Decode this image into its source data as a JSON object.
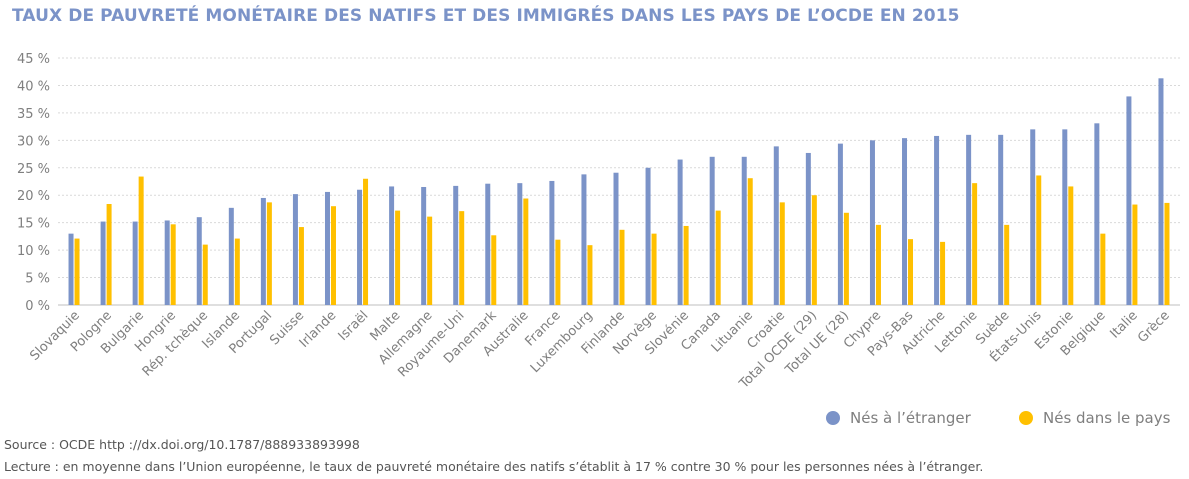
{
  "chart_data": {
    "type": "bar",
    "title": "TAUX DE PAUVRETÉ MONÉTAIRE DES NATIFS ET DES IMMIGRÉS DANS LES PAYS DE L’OCDE EN 2015",
    "categories": [
      "Slovaquie",
      "Pologne",
      "Bulgarie",
      "Hongrie",
      "Rép. tchèque",
      "Islande",
      "Portugal",
      "Suisse",
      "Irlande",
      "Israël",
      "Malte",
      "Allemagne",
      "Royaume-Uni",
      "Danemark",
      "Australie",
      "France",
      "Luxembourg",
      "Finlande",
      "Norvège",
      "Slovénie",
      "Canada",
      "Lituanie",
      "Croatie",
      "Total OCDE (29)",
      "Total UE (28)",
      "Chypre",
      "Pays-Bas",
      "Autriche",
      "Lettonie",
      "Suède",
      "États-Unis",
      "Estonie",
      "Belgique",
      "Italie",
      "Grèce"
    ],
    "series": [
      {
        "name": "Nés à l’étranger",
        "color": "#7b93c8",
        "values": [
          13.0,
          15.2,
          15.2,
          15.4,
          16.0,
          17.7,
          19.5,
          20.2,
          20.6,
          21.0,
          21.6,
          21.5,
          21.7,
          22.1,
          22.2,
          22.6,
          23.8,
          24.1,
          25.0,
          26.5,
          27.0,
          27.0,
          28.9,
          27.7,
          29.4,
          30.0,
          30.4,
          30.8,
          31.0,
          31.0,
          32.0,
          32.0,
          33.1,
          38.0,
          41.3
        ]
      },
      {
        "name": "Nés dans le pays",
        "color": "#ffc000",
        "values": [
          12.1,
          18.4,
          23.4,
          14.7,
          11.0,
          12.1,
          18.7,
          14.2,
          18.0,
          23.0,
          17.2,
          16.1,
          17.1,
          12.7,
          19.4,
          11.9,
          10.9,
          13.7,
          13.0,
          14.4,
          17.2,
          23.1,
          18.7,
          20.0,
          16.8,
          14.6,
          12.0,
          11.5,
          22.2,
          14.6,
          23.6,
          21.6,
          13.0,
          18.3,
          18.6
        ]
      }
    ],
    "yticks": [
      "0 %",
      "5 %",
      "10 %",
      "15 %",
      "20 %",
      "25 %",
      "30 %",
      "35 %",
      "40 %",
      "45 %"
    ],
    "ylim": [
      0,
      45
    ],
    "grid": true,
    "legend_position": "bottom-right"
  },
  "footer": {
    "source": "Source : OCDE http ://dx.doi.org/10.1787/888933893998",
    "lecture": "Lecture : en moyenne dans l’Union européenne, le taux de pauvreté monétaire des natifs s’établit à 17 % contre 30 % pour les personnes nées à l’étranger."
  }
}
